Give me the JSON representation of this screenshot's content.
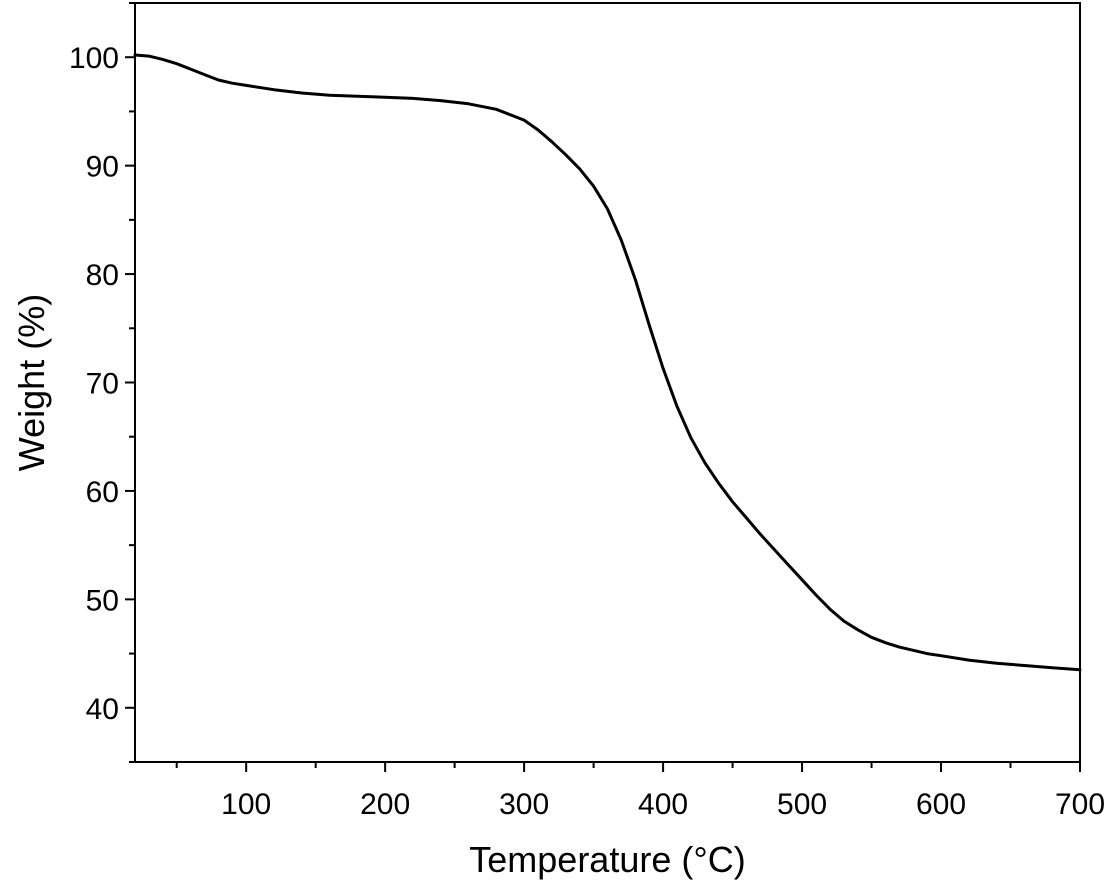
{
  "chart_data": {
    "type": "line",
    "title": "",
    "xlabel": "Temperature (°C)",
    "ylabel": "Weight (%)",
    "xlim": [
      20,
      700
    ],
    "ylim": [
      35,
      105
    ],
    "xticks": [
      100,
      200,
      300,
      400,
      500,
      600,
      700
    ],
    "xtick_labels": [
      "100",
      "200",
      "300",
      "400",
      "500",
      "600",
      "700"
    ],
    "yticks": [
      40,
      50,
      60,
      70,
      80,
      90,
      100
    ],
    "ytick_labels": [
      "40",
      "50",
      "60",
      "70",
      "80",
      "90",
      "100"
    ],
    "grid": false,
    "legend": "none",
    "line_color": "#000000",
    "series": [
      {
        "x": [
          20,
          30,
          40,
          50,
          60,
          70,
          80,
          90,
          100,
          120,
          140,
          160,
          180,
          200,
          220,
          240,
          260,
          280,
          300,
          310,
          320,
          330,
          340,
          350,
          360,
          370,
          380,
          390,
          400,
          410,
          420,
          430,
          440,
          450,
          460,
          470,
          480,
          490,
          500,
          510,
          520,
          530,
          540,
          550,
          560,
          570,
          580,
          590,
          600,
          620,
          640,
          660,
          680,
          700
        ],
        "y": [
          100.2,
          100.1,
          99.8,
          99.4,
          98.9,
          98.4,
          97.9,
          97.6,
          97.4,
          97.0,
          96.7,
          96.5,
          96.4,
          96.3,
          96.2,
          96.0,
          95.7,
          95.2,
          94.2,
          93.3,
          92.2,
          91.0,
          89.7,
          88.1,
          86.0,
          83.1,
          79.5,
          75.3,
          71.3,
          67.8,
          64.9,
          62.6,
          60.7,
          59.0,
          57.5,
          56.0,
          54.6,
          53.2,
          51.8,
          50.4,
          49.1,
          48.0,
          47.2,
          46.5,
          46.0,
          45.6,
          45.3,
          45.0,
          44.8,
          44.4,
          44.1,
          43.9,
          43.7,
          43.5
        ]
      }
    ]
  }
}
